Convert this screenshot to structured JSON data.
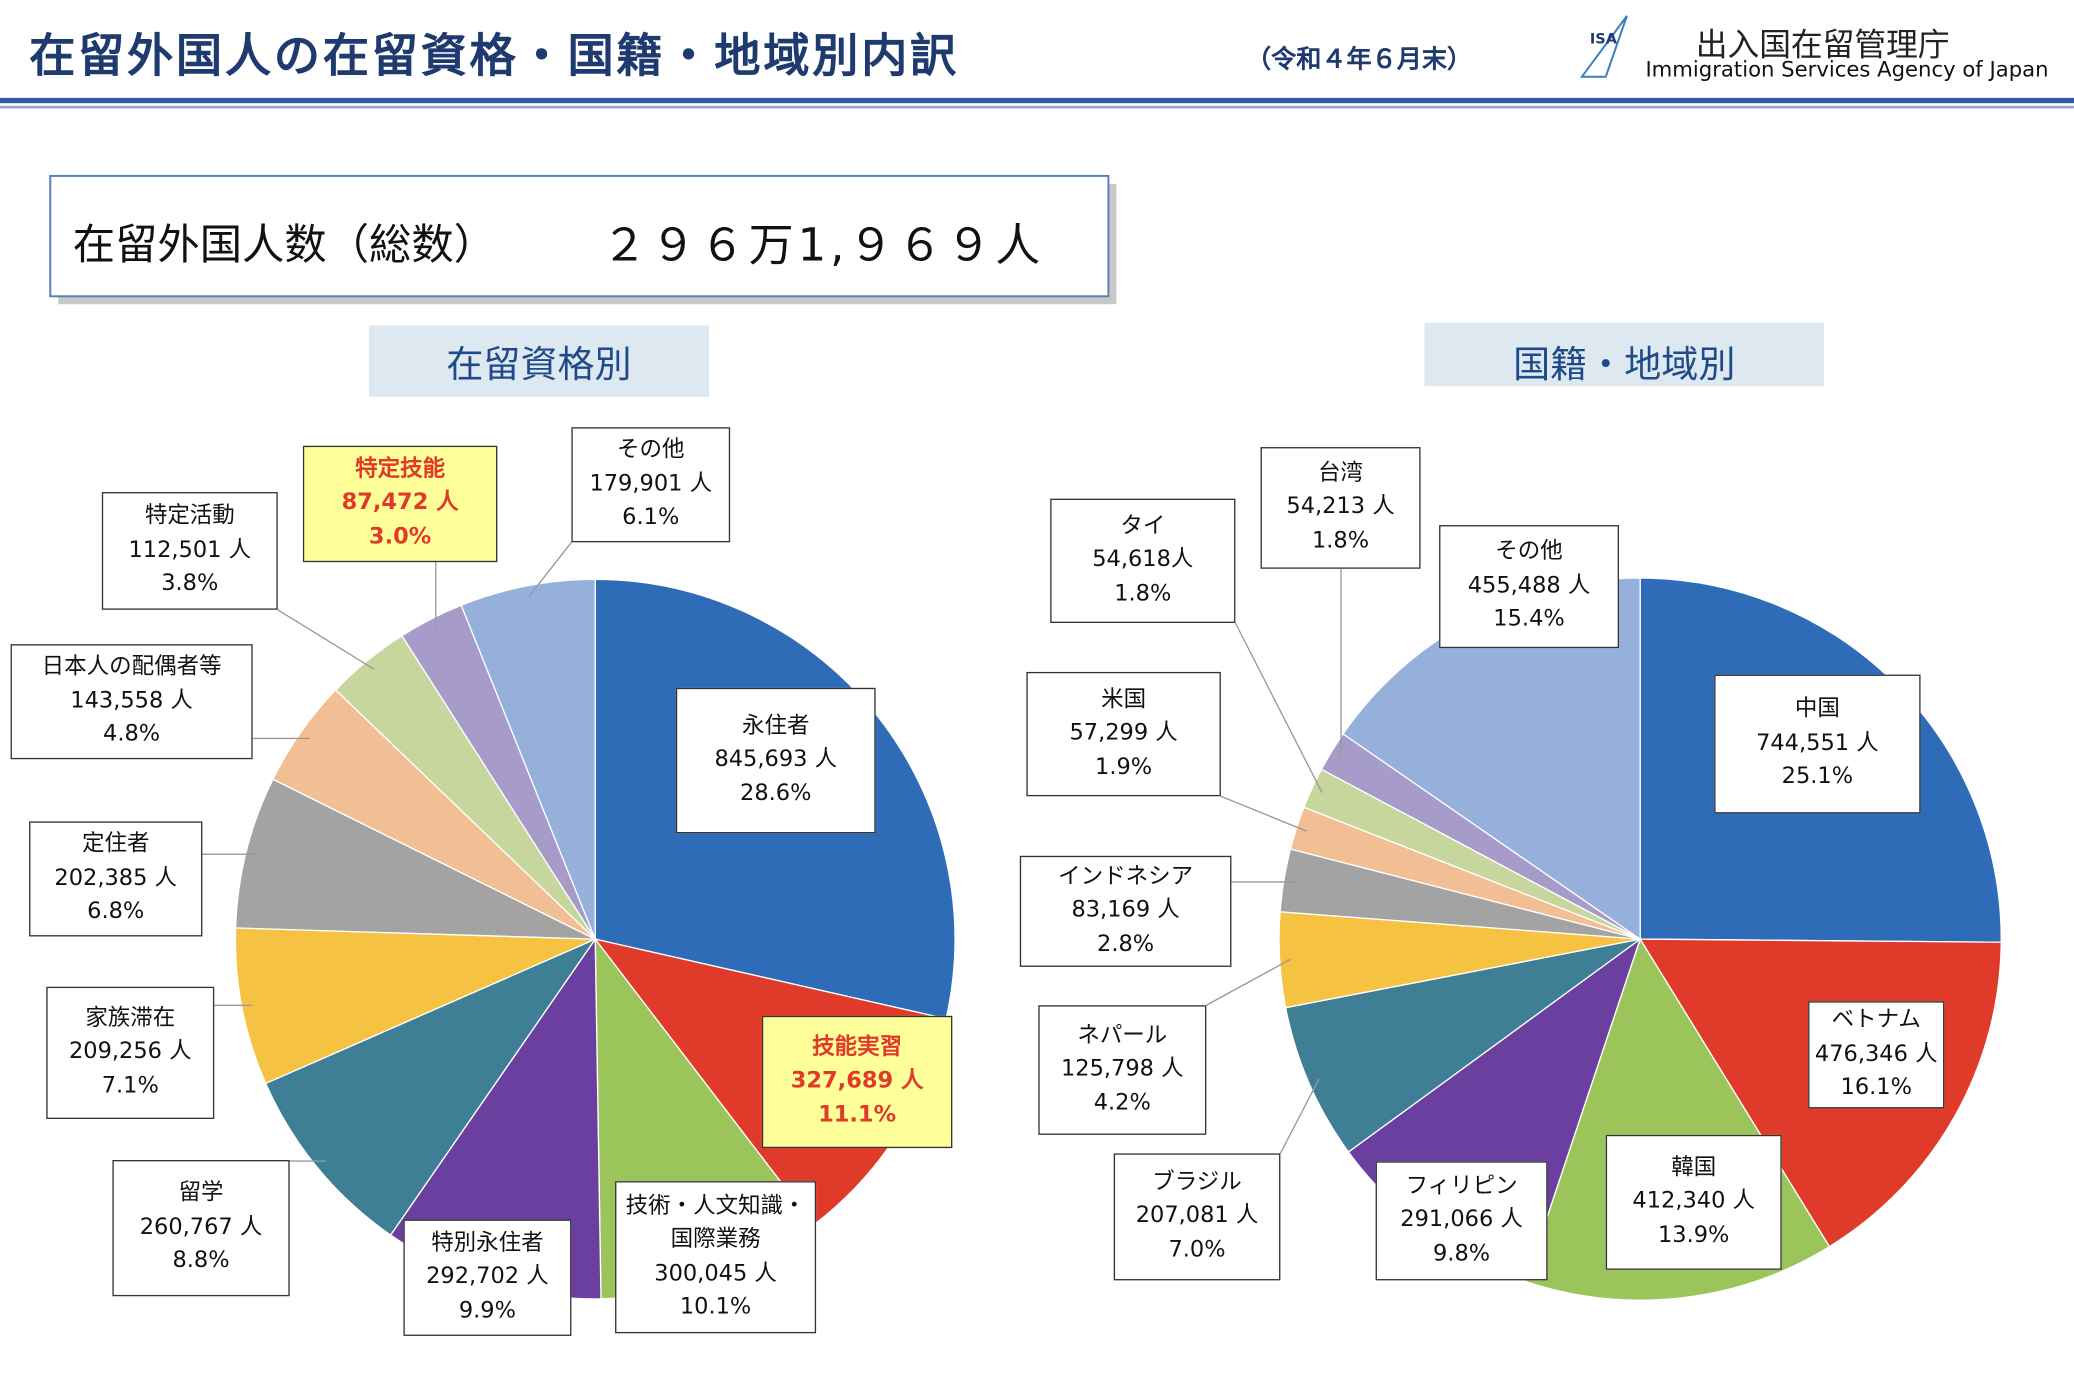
{
  "header": {
    "title": "在留外国人の在留資格・国籍・地域別内訳",
    "date": "（令和４年６月末）",
    "logo": "ISA",
    "agency_ja": "出入国在留管理庁",
    "agency_en": "Immigration Services Agency of Japan"
  },
  "total": {
    "label": "在留外国人数（総数）",
    "value": "２９６万1,９６９人"
  },
  "chart_data": [
    {
      "type": "pie",
      "title": "在留資格別",
      "categories": [
        "永住者",
        "技能実習",
        "技術・人文知識・国際業務",
        "特別永住者",
        "留学",
        "家族滞在",
        "定住者",
        "日本人の配偶者等",
        "特定活動",
        "特定技能",
        "その他"
      ],
      "values": [
        845693,
        327689,
        300045,
        292702,
        260767,
        209256,
        202385,
        143558,
        112501,
        87472,
        179901
      ],
      "value_labels": [
        "845,693 人",
        "327,689 人",
        "300,045 人",
        "292,702 人",
        "260,767 人",
        "209,256 人",
        "202,385 人",
        "143,558 人",
        "112,501 人",
        "87,472 人",
        "179,901 人"
      ],
      "percent_labels": [
        "28.6%",
        "11.1%",
        "10.1%",
        "9.9%",
        "8.8%",
        "7.1%",
        "6.8%",
        "4.8%",
        "3.8%",
        "3.0%",
        "6.1%"
      ],
      "colors": [
        "#2e6cb8",
        "#e03a2a",
        "#9bc45a",
        "#6b3fa0",
        "#3f7f95",
        "#f5c242",
        "#a3a3a3",
        "#f2be93",
        "#c6d69c",
        "#a79cc9",
        "#94b0db"
      ],
      "highlighted": [
        false,
        true,
        false,
        false,
        false,
        false,
        false,
        false,
        false,
        true,
        false
      ]
    },
    {
      "type": "pie",
      "title": "国籍・地域別",
      "categories": [
        "中国",
        "ベトナム",
        "韓国",
        "フィリピン",
        "ブラジル",
        "ネパール",
        "インドネシア",
        "米国",
        "タイ",
        "台湾",
        "その他"
      ],
      "values": [
        744551,
        476346,
        412340,
        291066,
        207081,
        125798,
        83169,
        57299,
        54618,
        54213,
        455488
      ],
      "value_labels": [
        "744,551 人",
        "476,346 人",
        "412,340 人",
        "291,066 人",
        "207,081 人",
        "125,798 人",
        "83,169 人",
        "57,299 人",
        "54,618人",
        "54,213 人",
        "455,488 人"
      ],
      "percent_labels": [
        "25.1%",
        "16.1%",
        "13.9%",
        "9.8%",
        "7.0%",
        "4.2%",
        "2.8%",
        "1.9%",
        "1.8%",
        "1.8%",
        "15.4%"
      ],
      "colors": [
        "#2e6cb8",
        "#e03a2a",
        "#9bc45a",
        "#6b3fa0",
        "#3f7f95",
        "#f5c242",
        "#a3a3a3",
        "#f2be93",
        "#c6d69c",
        "#a79cc9",
        "#94b0db"
      ],
      "highlighted": [
        false,
        false,
        false,
        false,
        false,
        false,
        false,
        false,
        false,
        false,
        false
      ]
    }
  ]
}
